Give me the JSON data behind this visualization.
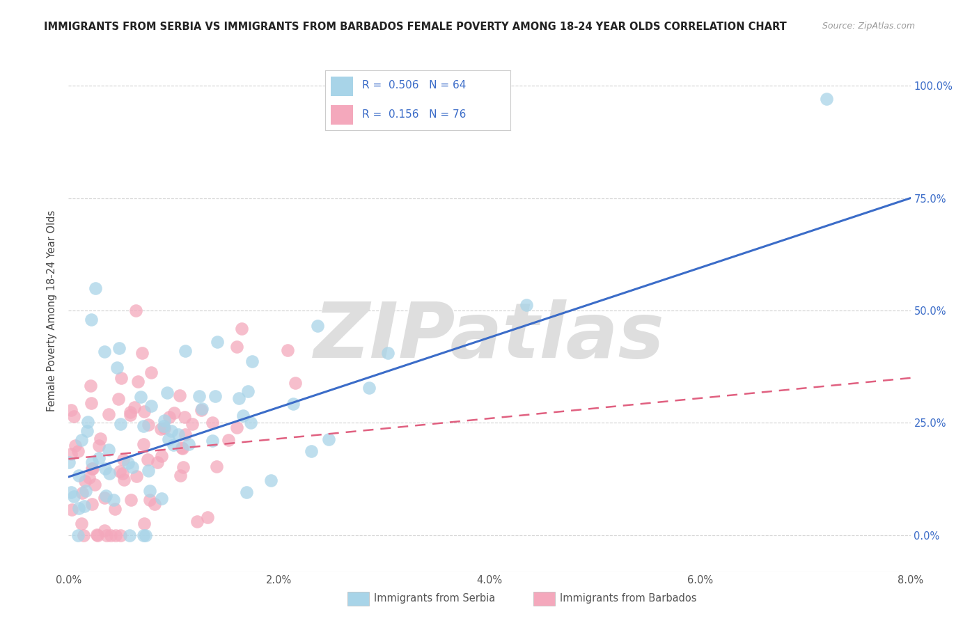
{
  "title": "IMMIGRANTS FROM SERBIA VS IMMIGRANTS FROM BARBADOS FEMALE POVERTY AMONG 18-24 YEAR OLDS CORRELATION CHART",
  "source": "Source: ZipAtlas.com",
  "ylabel": "Female Poverty Among 18-24 Year Olds",
  "xlabel_ticks": [
    "0.0%",
    "2.0%",
    "4.0%",
    "6.0%",
    "8.0%"
  ],
  "xlabel_vals": [
    0.0,
    2.0,
    4.0,
    6.0,
    8.0
  ],
  "ylabel_ticks": [
    "0.0%",
    "25.0%",
    "50.0%",
    "75.0%",
    "100.0%"
  ],
  "ylabel_vals": [
    0.0,
    25.0,
    50.0,
    75.0,
    100.0
  ],
  "xmin": 0.0,
  "xmax": 8.0,
  "ymin": -8.0,
  "ymax": 108.0,
  "serbia_color": "#A8D4E8",
  "barbados_color": "#F4A8BC",
  "serbia_R": 0.506,
  "serbia_N": 64,
  "barbados_R": 0.156,
  "barbados_N": 76,
  "serbia_line_color": "#3B6CC8",
  "barbados_line_color": "#E06080",
  "watermark": "ZIPatlas",
  "watermark_color": "#DDDDDD",
  "title_fontsize": 10.5,
  "source_fontsize": 9
}
